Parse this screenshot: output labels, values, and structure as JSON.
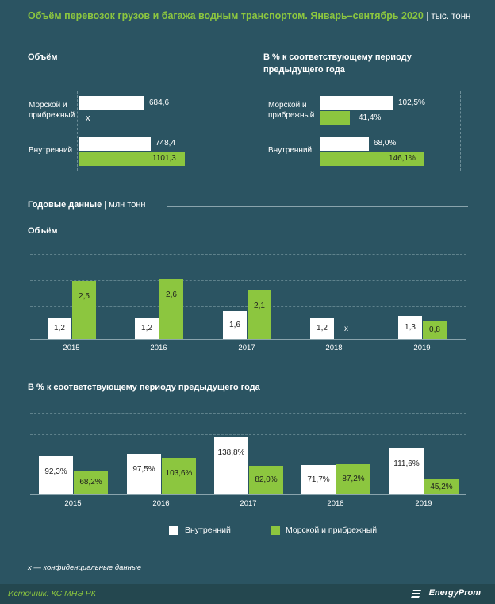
{
  "title": "Объём перевозок грузов и багажа водным транспортом. Январь–сентябрь 2020",
  "title_unit": "| тыс. тонн",
  "top_left": {
    "heading": "Объём",
    "categories": [
      "Морской и прибрежный",
      "Внутренний"
    ],
    "rows": [
      {
        "label_line1": "Морской и",
        "label_line2": "прибрежный",
        "white": 684.6,
        "white_label": "684,6",
        "green_label": "x"
      },
      {
        "label_line1": "Внутренний",
        "label_line2": "",
        "white": 748.4,
        "white_label": "748,4",
        "green": 1101.3,
        "green_label": "1101,3"
      }
    ]
  },
  "top_right": {
    "heading_line1": "В % к соответствующему  периоду",
    "heading_line2": "предыдущего года",
    "rows": [
      {
        "label_line1": "Морской и",
        "label_line2": "прибрежный",
        "white": 102.5,
        "white_label": "102,5%",
        "green": 41.4,
        "green_label": "41,4%"
      },
      {
        "label_line1": "Внутренний",
        "label_line2": "",
        "white": 68.0,
        "white_label": "68,0%",
        "green": 146.1,
        "green_label": "146,1%"
      }
    ]
  },
  "annual_heading": "Годовые данные",
  "annual_unit": "| млн тонн",
  "volume_heading": "Объём",
  "percent_heading": "В % к соответствующему  периоду предыдущего года",
  "legend": {
    "white": "Внутренний",
    "green": "Морской и прибрежный"
  },
  "note": "x — конфиденциальные данные",
  "source": "Источник: КС МНЭ РК",
  "brand": "EnergyProm",
  "colors": {
    "background": "#2b5462",
    "green": "#8cc63f",
    "white": "#ffffff",
    "title": "#8cc63f"
  },
  "chart_data": [
    {
      "type": "bar",
      "title": "Объём",
      "categories": [
        "2015",
        "2016",
        "2017",
        "2018",
        "2019"
      ],
      "series": [
        {
          "name": "Внутренний",
          "values": [
            1.2,
            1.2,
            1.6,
            1.2,
            1.3
          ],
          "labels": [
            "1,2",
            "1,2",
            "1,6",
            "1,2",
            "1,3"
          ]
        },
        {
          "name": "Морской и прибрежный",
          "values": [
            2.5,
            2.6,
            2.1,
            null,
            0.8
          ],
          "labels": [
            "2,5",
            "2,6",
            "2,1",
            "x",
            "0,8"
          ]
        }
      ]
    },
    {
      "type": "bar",
      "title": "В % к соответствующему  периоду предыдущего года",
      "categories": [
        "2015",
        "2016",
        "2017",
        "2018",
        "2019"
      ],
      "series": [
        {
          "name": "Внутренний",
          "values": [
            92.3,
            97.5,
            138.8,
            71.7,
            111.6
          ],
          "labels": [
            "92,3%",
            "97,5%",
            "138,8%",
            "71,7%",
            "111,6%"
          ]
        },
        {
          "name": "Морской и прибрежный",
          "values": [
            68.2,
            103.6,
            82.0,
            87.2,
            45.2
          ],
          "labels": [
            "68,2%",
            "103,6%",
            "82,0%",
            "87,2%",
            "45,2%"
          ]
        }
      ]
    }
  ]
}
